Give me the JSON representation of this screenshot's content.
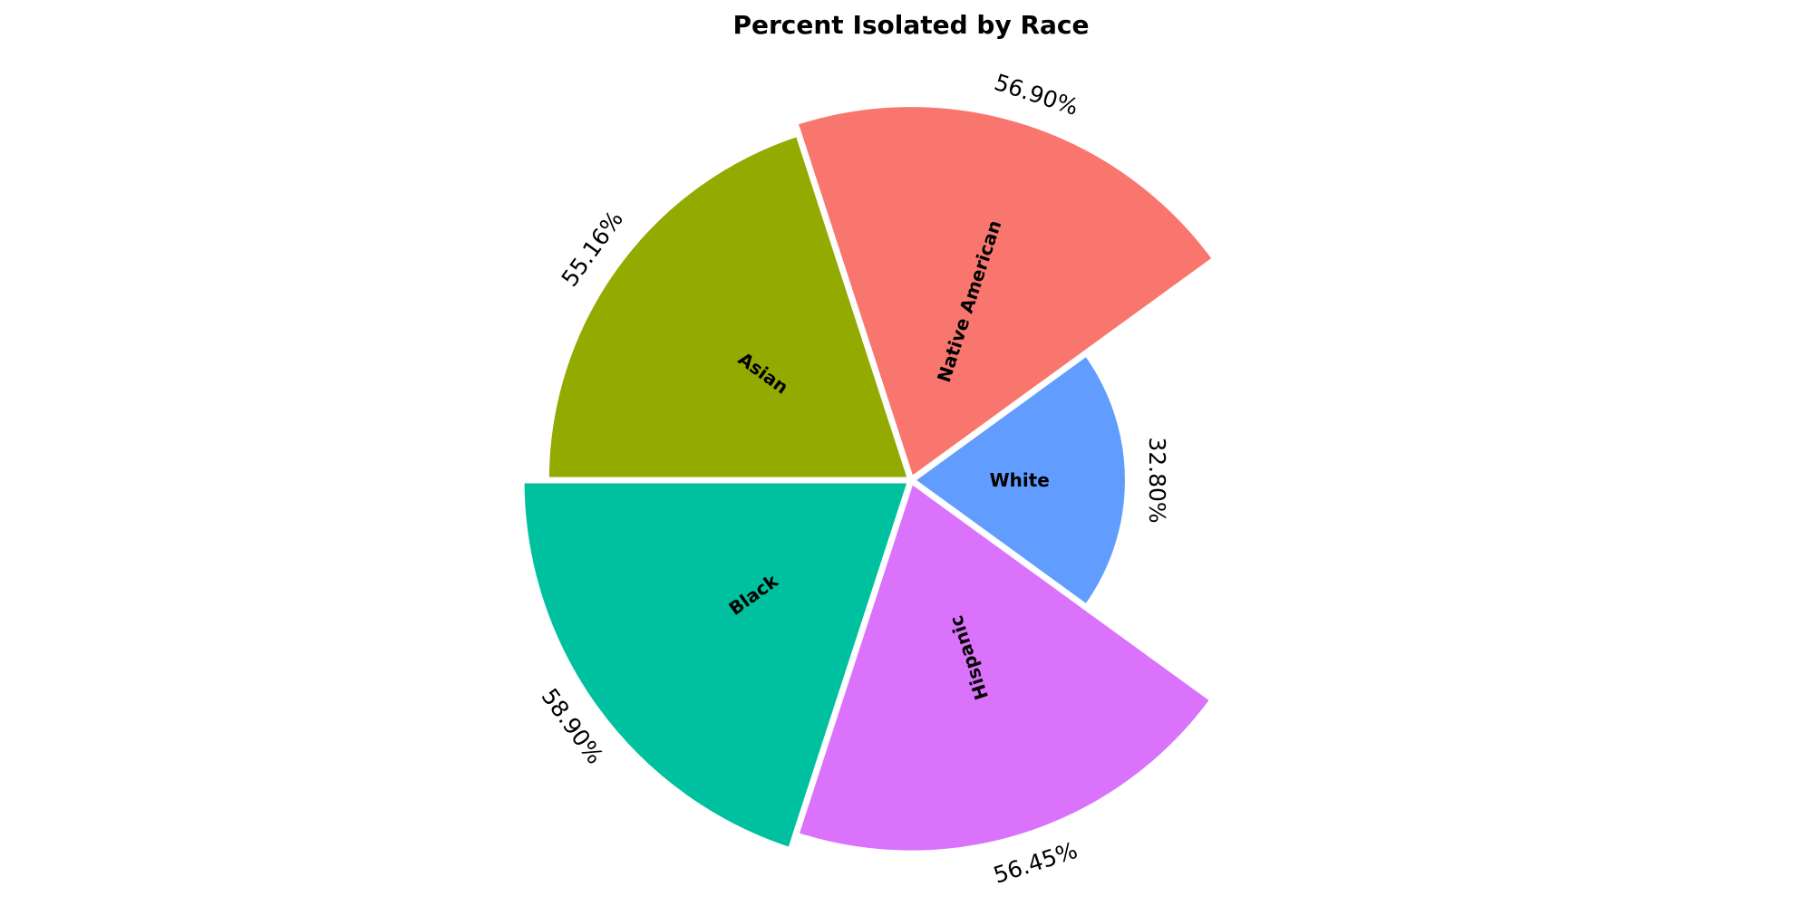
{
  "chart_data": {
    "type": "bar",
    "subtype": "polar-bar",
    "title": "Percent Isolated by Race",
    "categories": [
      "White",
      "Native American",
      "Asian",
      "Black",
      "Hispanic"
    ],
    "values": [
      32.8,
      56.9,
      55.16,
      58.9,
      56.45
    ],
    "value_labels": [
      "32.80%",
      "56.90%",
      "55.16%",
      "58.90%",
      "56.45%"
    ],
    "colors": [
      "#619CFF",
      "#F8766D",
      "#93AA00",
      "#00C19F",
      "#DB72FB"
    ],
    "grid": false,
    "legend": "none"
  }
}
